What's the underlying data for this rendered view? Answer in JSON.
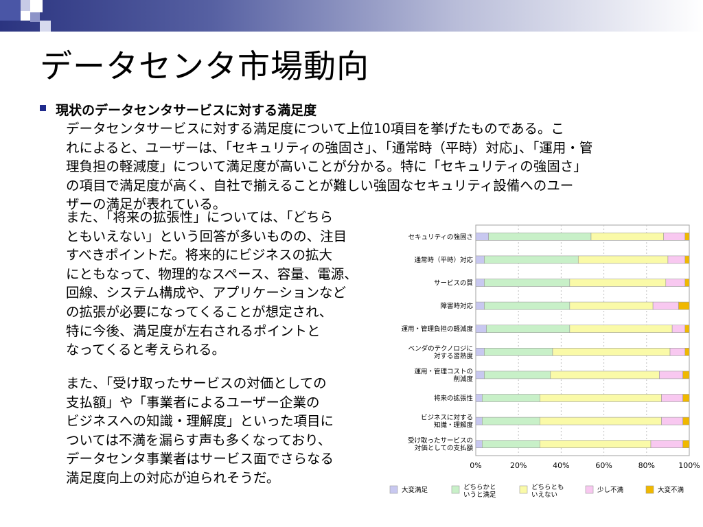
{
  "slide": {
    "title": "データセンタ市場動向",
    "bullet_heading": "現状のデータセンタサービスに対する満足度"
  },
  "body": {
    "para1_lines": [
      "データセンタサービスに対する満足度について上位10項目を挙げたものである。こ",
      "れによると、ユーザーは、「セキュリティの強固さ」、「通常時（平時）対応」、「運用・管",
      "理負担の軽減度」について満足度が高いことが分かる。特に「セキュリティの強固さ」",
      "の項目で満足度が高く、自社で揃えることが難しい強固なセキュリティ設備へのユー",
      "ザーの満足が表れている。"
    ],
    "para2_lines": [
      "また、「将来の拡張性」については、「どちら",
      "ともいえない」という回答が多いものの、注目",
      "すべきポイントだ。将来的にビジネスの拡大",
      "にともなって、物理的なスペース、容量、電源、",
      "回線、システム構成や、アプリケーションなど",
      "の拡張が必要になってくることが想定され、",
      "特に今後、満足度が左右されるポイントと",
      "なってくると考えられる。"
    ],
    "para3_lines": [
      "また、「受け取ったサービスの対価としての",
      "支払額」や「事業者によるユーザー企業の",
      "ビジネスへの知識・理解度」といった項目に",
      "ついては不満を漏らす声も多くなっており、",
      "データセンタ事業者はサービス面でさらなる",
      "満足度向上の対応が迫られそうだ。"
    ]
  },
  "colors": {
    "very_satisfied": "#c8c8f0",
    "somewhat_satisfied": "#c8f0c8",
    "neutral": "#fafaa8",
    "somewhat_dissatisfied": "#f8c8f0",
    "very_dissatisfied": "#f0b800"
  },
  "chart_data": {
    "type": "bar",
    "orientation": "horizontal",
    "stacked": true,
    "normalized": true,
    "categories": [
      [
        "セキュリティの強固さ"
      ],
      [
        "通常時（平時）対応"
      ],
      [
        "サービスの質"
      ],
      [
        "障害時対応"
      ],
      [
        "運用・管理負担の軽減度"
      ],
      [
        "ベンダのテクノロジに",
        "対する習熟度"
      ],
      [
        "運用・管理コストの",
        "削減度"
      ],
      [
        "将来の拡張性"
      ],
      [
        "ビジネスに対する",
        "知識・理解度"
      ],
      [
        "受け取ったサービスの",
        "対価としての支払額"
      ]
    ],
    "series": [
      {
        "name": "大変満足",
        "values": [
          6,
          4,
          4,
          4,
          5,
          4,
          4,
          3,
          3,
          3
        ]
      },
      {
        "name": "どちらかと\nいうと満足",
        "values": [
          48,
          44,
          40,
          40,
          39,
          32,
          31,
          27,
          27,
          27
        ]
      },
      {
        "name": "どちらとも\nいえない",
        "values": [
          34,
          42,
          45,
          39,
          48,
          55,
          51,
          57,
          57,
          52
        ]
      },
      {
        "name": "少し不満",
        "values": [
          10,
          8,
          9,
          12,
          6,
          7,
          11,
          10,
          10,
          15
        ]
      },
      {
        "name": "大変不満",
        "values": [
          2,
          2,
          2,
          5,
          2,
          2,
          3,
          3,
          3,
          3
        ]
      }
    ],
    "xaxis": {
      "ticks": [
        0,
        20,
        40,
        60,
        80,
        100
      ],
      "tick_labels": [
        "0%",
        "20%",
        "40%",
        "60%",
        "80%",
        "100%"
      ]
    },
    "xlim": [
      0,
      100
    ],
    "grid": "vertical dashed",
    "legend_position": "bottom"
  }
}
